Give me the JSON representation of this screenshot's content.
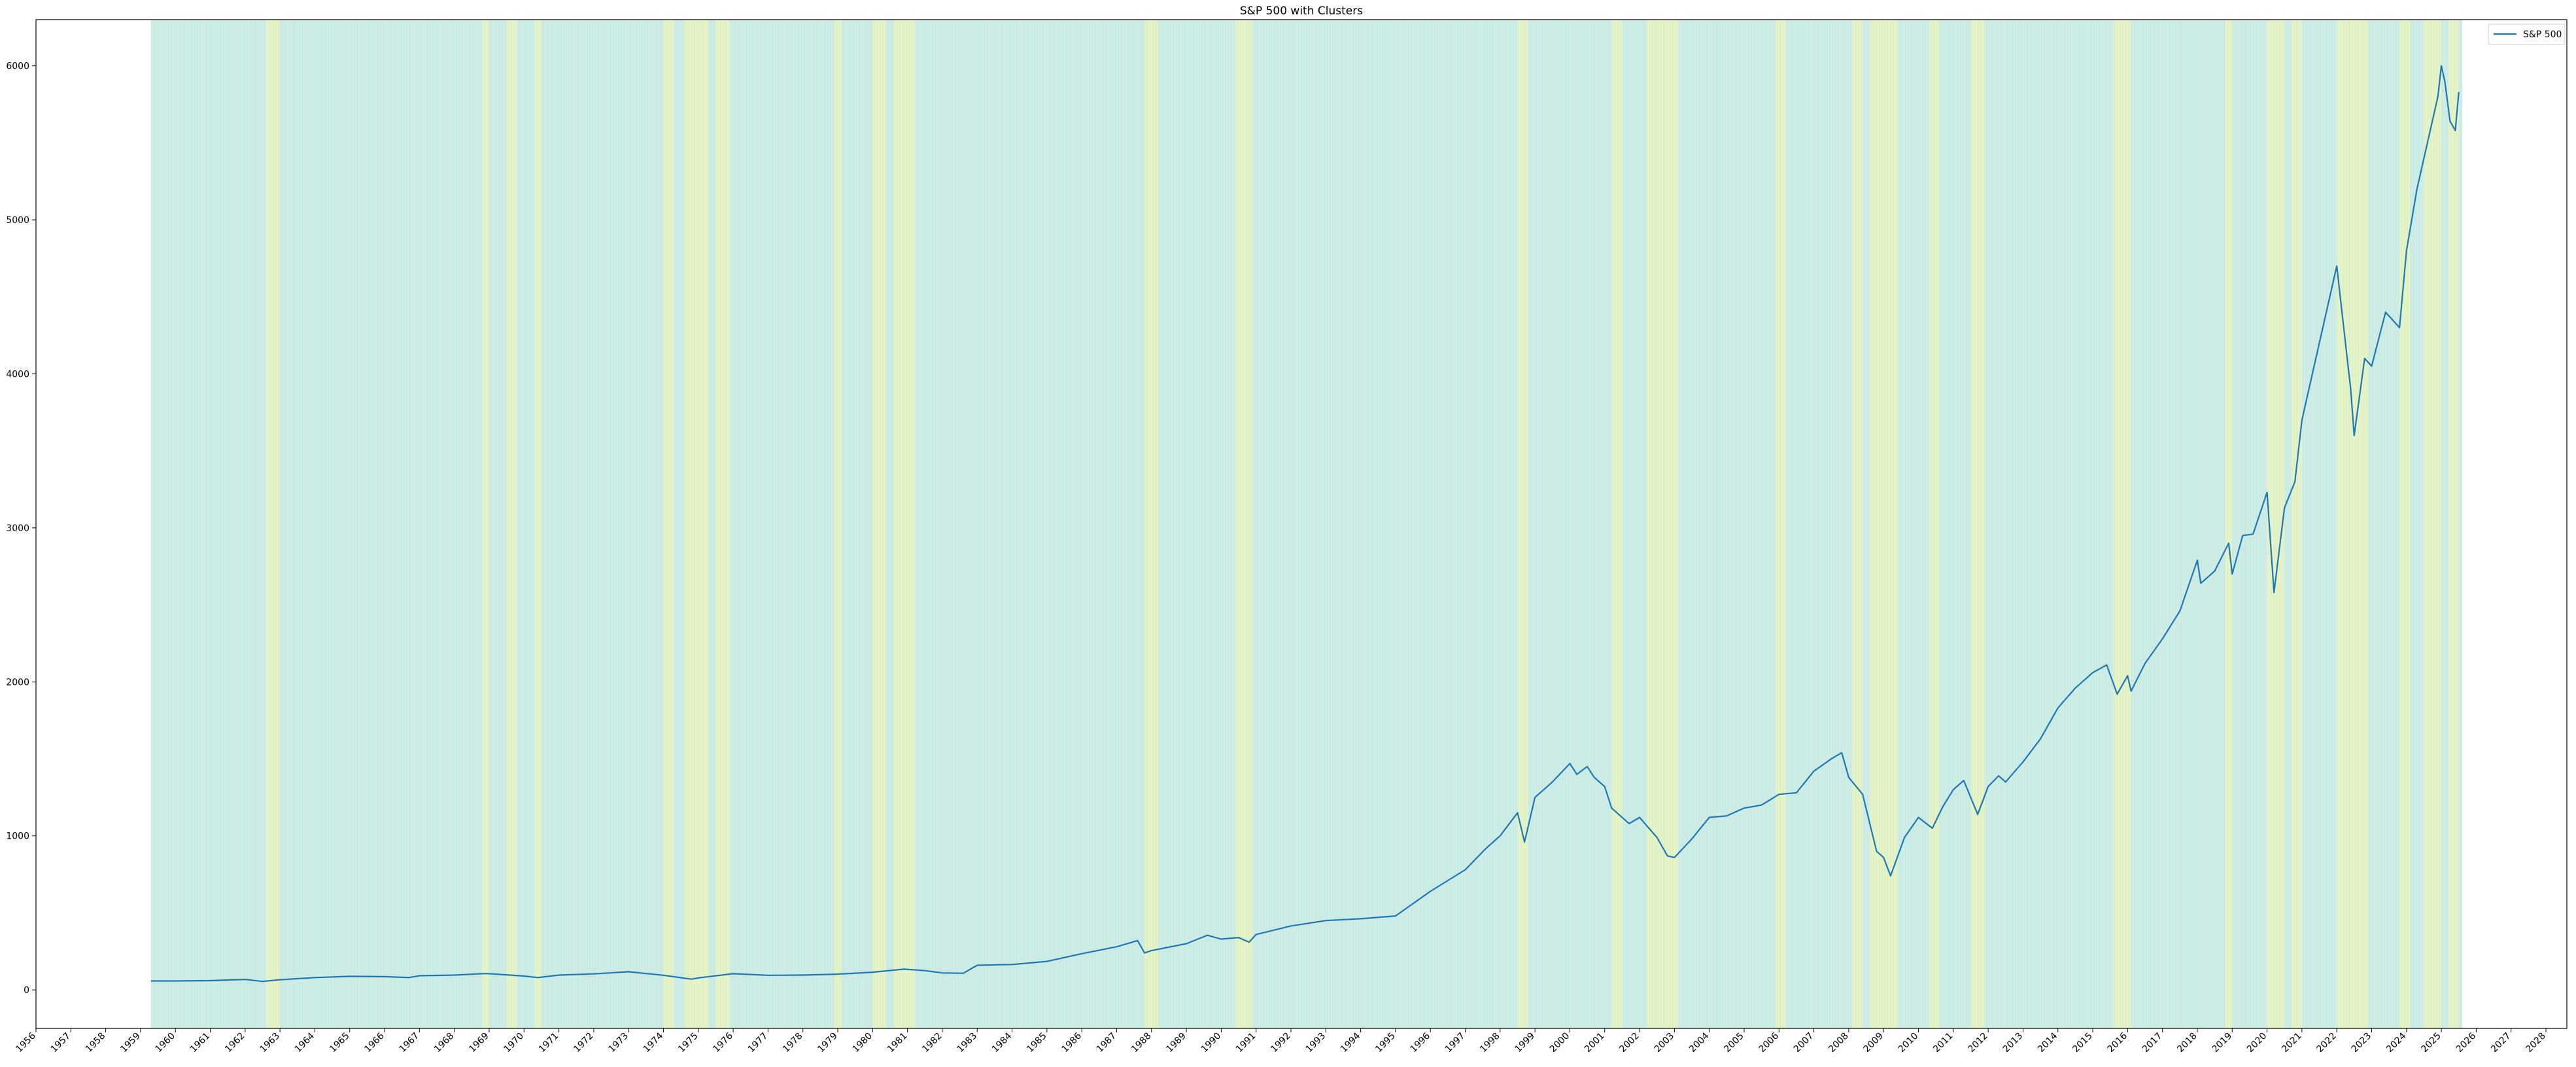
{
  "chart_data": {
    "type": "line",
    "title": "S&P 500 with Clusters",
    "xlabel": "",
    "ylabel": "",
    "xlim": [
      1956.0,
      2028.6
    ],
    "ylim": [
      -250,
      6300
    ],
    "x_ticks": [
      "1956",
      "1957",
      "1958",
      "1959",
      "1960",
      "1961",
      "1962",
      "1963",
      "1964",
      "1965",
      "1966",
      "1967",
      "1968",
      "1969",
      "1970",
      "1971",
      "1972",
      "1973",
      "1974",
      "1975",
      "1976",
      "1977",
      "1978",
      "1979",
      "1980",
      "1981",
      "1982",
      "1983",
      "1984",
      "1985",
      "1986",
      "1987",
      "1988",
      "1989",
      "1990",
      "1991",
      "1992",
      "1993",
      "1994",
      "1995",
      "1996",
      "1997",
      "1998",
      "1999",
      "2000",
      "2001",
      "2002",
      "2003",
      "2004",
      "2005",
      "2006",
      "2007",
      "2008",
      "2009",
      "2010",
      "2011",
      "2012",
      "2013",
      "2014",
      "2015",
      "2016",
      "2017",
      "2018",
      "2019",
      "2020",
      "2021",
      "2022",
      "2023",
      "2024",
      "2025",
      "2026",
      "2027",
      "2028"
    ],
    "y_ticks": [
      0,
      1000,
      2000,
      3000,
      4000,
      5000,
      6000
    ],
    "grid": false,
    "legend": {
      "position": "top-right",
      "entries": [
        "S&P 500"
      ]
    },
    "colors": {
      "line": "#1f77b4",
      "cluster_0": "#cdece6",
      "cluster_1": "#e6f3c4"
    },
    "cluster_span": [
      1959.3,
      2025.6
    ],
    "clusters_yellow": [
      [
        1962.6,
        1963.0
      ],
      [
        1968.8,
        1969.0
      ],
      [
        1969.5,
        1969.8
      ],
      [
        1970.3,
        1970.5
      ],
      [
        1974.0,
        1974.3
      ],
      [
        1974.6,
        1975.3
      ],
      [
        1975.5,
        1975.9
      ],
      [
        1978.9,
        1979.1
      ],
      [
        1980.0,
        1980.4
      ],
      [
        1980.6,
        1981.2
      ],
      [
        1987.8,
        1988.2
      ],
      [
        1990.4,
        1990.9
      ],
      [
        1998.5,
        1998.8
      ],
      [
        2001.2,
        2001.5
      ],
      [
        2002.2,
        2003.1
      ],
      [
        2005.9,
        2006.2
      ],
      [
        2008.1,
        2008.4
      ],
      [
        2008.6,
        2009.4
      ],
      [
        2010.3,
        2010.6
      ],
      [
        2011.5,
        2011.9
      ],
      [
        2015.6,
        2016.1
      ],
      [
        2018.8,
        2019.0
      ],
      [
        2020.0,
        2020.5
      ],
      [
        2020.7,
        2021.0
      ],
      [
        2022.0,
        2022.9
      ],
      [
        2023.8,
        2024.1
      ],
      [
        2024.5,
        2025.0
      ],
      [
        2025.2,
        2025.5
      ]
    ],
    "series": [
      {
        "name": "S&P 500",
        "x": [
          1959.3,
          1960.0,
          1961.0,
          1962.0,
          1962.5,
          1963.0,
          1964.0,
          1965.0,
          1966.0,
          1966.7,
          1967.0,
          1968.0,
          1968.9,
          1969.5,
          1970.0,
          1970.4,
          1971.0,
          1972.0,
          1973.0,
          1974.0,
          1974.8,
          1975.0,
          1976.0,
          1977.0,
          1978.0,
          1979.0,
          1980.0,
          1980.9,
          1981.5,
          1982.0,
          1982.6,
          1983.0,
          1984.0,
          1985.0,
          1986.0,
          1987.0,
          1987.6,
          1987.8,
          1988.0,
          1989.0,
          1989.6,
          1990.0,
          1990.5,
          1990.8,
          1991.0,
          1992.0,
          1993.0,
          1994.0,
          1995.0,
          1996.0,
          1997.0,
          1997.6,
          1998.0,
          1998.5,
          1998.7,
          1999.0,
          1999.5,
          2000.0,
          2000.2,
          2000.5,
          2000.7,
          2001.0,
          2001.2,
          2001.7,
          2002.0,
          2002.5,
          2002.8,
          2003.0,
          2003.5,
          2004.0,
          2004.5,
          2005.0,
          2005.5,
          2006.0,
          2006.5,
          2007.0,
          2007.5,
          2007.8,
          2008.0,
          2008.4,
          2008.8,
          2009.0,
          2009.2,
          2009.6,
          2010.0,
          2010.4,
          2010.7,
          2011.0,
          2011.3,
          2011.7,
          2012.0,
          2012.3,
          2012.5,
          2013.0,
          2013.5,
          2014.0,
          2014.5,
          2015.0,
          2015.4,
          2015.7,
          2016.0,
          2016.1,
          2016.5,
          2017.0,
          2017.5,
          2018.0,
          2018.1,
          2018.5,
          2018.9,
          2019.0,
          2019.3,
          2019.6,
          2020.0,
          2020.2,
          2020.5,
          2020.8,
          2021.0,
          2021.5,
          2022.0,
          2022.2,
          2022.4,
          2022.5,
          2022.8,
          2023.0,
          2023.4,
          2023.8,
          2024.0,
          2024.3,
          2024.6,
          2024.9,
          2025.0,
          2025.1,
          2025.25,
          2025.4,
          2025.5
        ],
        "y": [
          58,
          58,
          60,
          68,
          55,
          66,
          80,
          88,
          86,
          80,
          92,
          96,
          106,
          98,
          90,
          80,
          96,
          104,
          118,
          95,
          70,
          78,
          105,
          95,
          96,
          102,
          115,
          135,
          125,
          110,
          108,
          160,
          165,
          185,
          235,
          280,
          320,
          240,
          255,
          300,
          355,
          330,
          340,
          310,
          360,
          415,
          450,
          462,
          480,
          640,
          780,
          920,
          1000,
          1150,
          960,
          1250,
          1350,
          1470,
          1400,
          1450,
          1380,
          1320,
          1180,
          1080,
          1120,
          990,
          870,
          860,
          980,
          1120,
          1130,
          1180,
          1200,
          1270,
          1280,
          1420,
          1500,
          1540,
          1380,
          1270,
          900,
          860,
          740,
          990,
          1120,
          1050,
          1190,
          1300,
          1360,
          1140,
          1320,
          1390,
          1350,
          1480,
          1630,
          1830,
          1960,
          2060,
          2110,
          1920,
          2040,
          1940,
          2120,
          2280,
          2460,
          2790,
          2640,
          2720,
          2900,
          2700,
          2950,
          2960,
          3230,
          2580,
          3130,
          3300,
          3700,
          4200,
          4700,
          4300,
          3900,
          3600,
          4100,
          4050,
          4400,
          4300,
          4800,
          5200,
          5500,
          5800,
          6000,
          5900,
          5640,
          5580,
          5830
        ]
      }
    ]
  }
}
